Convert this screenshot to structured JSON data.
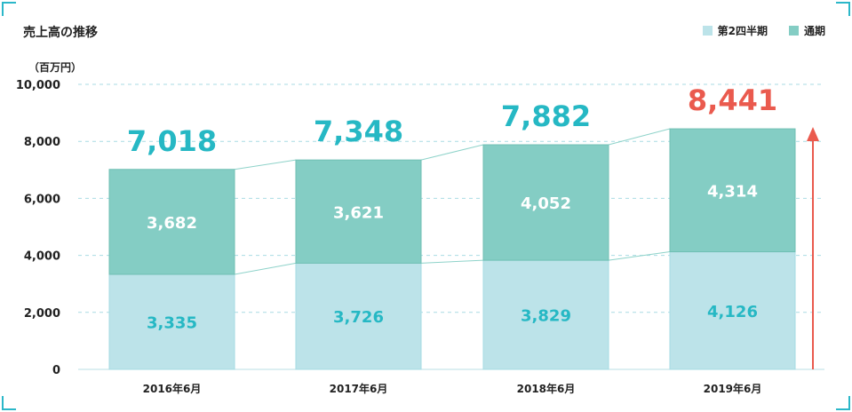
{
  "title": "売上高の推移",
  "chart_data": {
    "type": "bar",
    "stacked": true,
    "title": "売上高の推移",
    "unit_label": "（百万円）",
    "categories": [
      "2016年6月",
      "2017年6月",
      "2018年6月",
      "2019年6月"
    ],
    "series": [
      {
        "name": "第2四半期",
        "values": [
          3335,
          3726,
          3829,
          4126
        ],
        "color": "#bce3e9"
      },
      {
        "name": "通期",
        "values": [
          3682,
          3621,
          4052,
          4314
        ],
        "color": "#84cdc4"
      }
    ],
    "value_labels": [
      [
        "3,335",
        "3,726",
        "3,829",
        "4,126"
      ],
      [
        "3,682",
        "3,621",
        "4,052",
        "4,314"
      ]
    ],
    "totals": [
      7018,
      7348,
      7882,
      8441
    ],
    "total_labels": [
      "7,018",
      "7,348",
      "7,882",
      "8,441"
    ],
    "total_colors": [
      "#26b8c4",
      "#26b8c4",
      "#26b8c4",
      "#ea5a4e"
    ],
    "y_ticks": [
      "0",
      "2,000",
      "4,000",
      "6,000",
      "8,000",
      "10,000"
    ],
    "ylim": [
      0,
      10000
    ],
    "grid": true,
    "legend_position": "top-right",
    "arrow_color": "#ea5a4e"
  }
}
